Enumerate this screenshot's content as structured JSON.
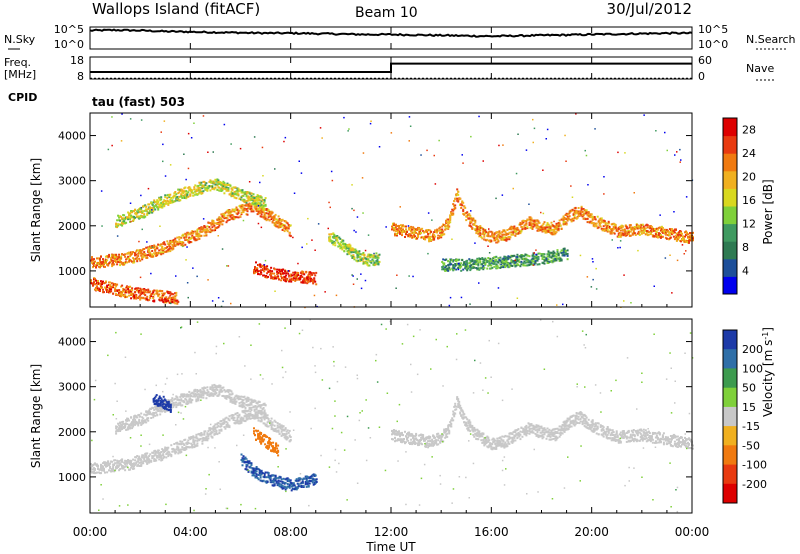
{
  "header": {
    "site": "Wallops Island (fitACF)",
    "beam": "Beam 10",
    "date": "30/Jul/2012"
  },
  "noise_panel": {
    "left_label": "N.Sky",
    "left_ticks": [
      "10^5",
      "10^0"
    ],
    "right_label": "N.Search",
    "right_ticks": [
      "10^5",
      "10^0"
    ]
  },
  "freq_panel": {
    "left_label_1": "Freq.",
    "left_label_2": "[MHz]",
    "left_ticks": [
      "18",
      "8"
    ],
    "right_label": "Nave",
    "right_ticks": [
      "60",
      "0"
    ]
  },
  "cpid": {
    "label": "CPID",
    "value": "tau (fast) 503"
  },
  "time_axis": {
    "label": "Time UT",
    "ticks": [
      "00:00",
      "04:00",
      "08:00",
      "12:00",
      "16:00",
      "20:00",
      "00:00"
    ]
  },
  "colors": {
    "power": [
      "#0000ee",
      "#1d4f9a",
      "#2e7a52",
      "#3f9a60",
      "#7fd03a",
      "#d8d820",
      "#f0b020",
      "#f07a10",
      "#e83a10",
      "#dd0000"
    ],
    "velocity": [
      "#1d3aa8",
      "#2f6fa8",
      "#3d9b4f",
      "#7fd03a",
      "#c8c8c8",
      "#f0b020",
      "#f07a10",
      "#e83a10",
      "#dd0000"
    ]
  },
  "chart_data": [
    {
      "type": "line",
      "title": "N.Sky / N.Search",
      "x": [
        0,
        1,
        2,
        3,
        4,
        5,
        6,
        7,
        8,
        9,
        10,
        11,
        12,
        13,
        14,
        15,
        16,
        17,
        18,
        19,
        20,
        21,
        22,
        23,
        24
      ],
      "series": [
        {
          "name": "N.Sky",
          "values": [
            4.2,
            4.3,
            4.2,
            4.0,
            3.9,
            3.8,
            3.7,
            3.6,
            3.6,
            3.5,
            3.4,
            3.3,
            3.3,
            3.2,
            3.1,
            3.0,
            2.9,
            3.0,
            3.1,
            3.2,
            3.3,
            3.4,
            3.5,
            3.6,
            3.6
          ]
        }
      ],
      "ylim": [
        0,
        5
      ],
      "ylabel": "N.Sky",
      "xlabel": ""
    },
    {
      "type": "line",
      "title": "Freq. [MHz] / Nave",
      "x": [
        0,
        12,
        12,
        24
      ],
      "series": [
        {
          "name": "Freq.",
          "values": [
            11.2,
            11.2,
            15.0,
            15.0
          ]
        },
        {
          "name": "Nave",
          "values": [
            2,
            2,
            2,
            2
          ]
        }
      ],
      "ylim": [
        8,
        18
      ],
      "ylabel": "Freq. [MHz]",
      "xlabel": ""
    },
    {
      "type": "heatmap",
      "title": "Power",
      "xlabel": "Time UT",
      "ylabel": "Slant Range [km]",
      "xlim": [
        0,
        24
      ],
      "ylim": [
        200,
        4500
      ],
      "yticks": [
        1000,
        2000,
        3000,
        4000
      ],
      "colorbar_label": "Power [dB]",
      "colorbar_ticks": [
        4,
        8,
        12,
        16,
        20,
        24,
        28
      ],
      "colorbar_range": [
        0,
        30
      ],
      "bands": [
        {
          "x": [
            0.0,
            1.5,
            3.0,
            4.5,
            5.5,
            6.5,
            7.5,
            8.0
          ],
          "y": [
            1200,
            1300,
            1550,
            1900,
            2250,
            2450,
            2100,
            1900
          ],
          "value": 22
        },
        {
          "x": [
            1.0,
            2.0,
            3.0,
            4.0,
            5.0,
            6.0,
            7.0
          ],
          "y": [
            2100,
            2300,
            2600,
            2800,
            2950,
            2700,
            2500
          ],
          "value": 16
        },
        {
          "x": [
            0.0,
            1.0,
            2.0,
            3.0,
            3.5
          ],
          "y": [
            750,
            600,
            500,
            450,
            400
          ],
          "value": 24
        },
        {
          "x": [
            6.5,
            7.0,
            7.5,
            8.0,
            8.5,
            9.0
          ],
          "y": [
            1100,
            1000,
            950,
            900,
            880,
            850
          ],
          "value": 26
        },
        {
          "x": [
            9.5,
            10.0,
            10.5,
            11.0,
            11.5
          ],
          "y": [
            1800,
            1600,
            1400,
            1250,
            1300
          ],
          "value": 14
        },
        {
          "x": [
            12.0,
            12.5,
            13.0,
            13.5,
            14.0,
            14.3,
            14.6,
            15.0,
            15.5,
            16.0,
            16.5,
            17.0,
            17.5,
            18.0,
            18.5,
            19.0,
            19.5,
            20.0,
            21.0,
            22.0,
            23.0,
            24.0
          ],
          "y": [
            1950,
            1900,
            1850,
            1800,
            1900,
            2100,
            2700,
            2200,
            1900,
            1750,
            1800,
            1950,
            2100,
            2000,
            1950,
            2200,
            2350,
            2150,
            1900,
            1950,
            1850,
            1750
          ],
          "value": 22
        },
        {
          "x": [
            14.0,
            15.0,
            16.0,
            17.0,
            18.0,
            19.0
          ],
          "y": [
            1150,
            1150,
            1200,
            1250,
            1300,
            1400
          ],
          "value": 10
        }
      ]
    },
    {
      "type": "heatmap",
      "title": "Velocity",
      "xlabel": "Time UT",
      "ylabel": "Slant Range [km]",
      "xlim": [
        0,
        24
      ],
      "ylim": [
        200,
        4500
      ],
      "yticks": [
        1000,
        2000,
        3000,
        4000
      ],
      "colorbar_label": "Velocity [m s^-1]",
      "colorbar_ticks": [
        "200",
        "100",
        "50",
        "15",
        "-15",
        "-50",
        "-100",
        "-200"
      ],
      "bands": [
        {
          "x": [
            0.0,
            1.5,
            3.0,
            4.5,
            5.5,
            6.5,
            7.5,
            8.0
          ],
          "y": [
            1200,
            1300,
            1550,
            1900,
            2250,
            2450,
            2100,
            1900
          ],
          "value": 0
        },
        {
          "x": [
            1.0,
            2.0,
            3.0,
            4.0,
            5.0,
            6.0,
            7.0
          ],
          "y": [
            2100,
            2300,
            2600,
            2800,
            2950,
            2700,
            2500
          ],
          "value": 5
        },
        {
          "x": [
            6.0,
            6.5,
            7.0,
            7.5,
            8.0,
            8.5,
            9.0
          ],
          "y": [
            1400,
            1150,
            1000,
            900,
            850,
            900,
            1000
          ],
          "value": 150
        },
        {
          "x": [
            2.5,
            3.0,
            3.2
          ],
          "y": [
            2750,
            2650,
            2550
          ],
          "value": 200
        },
        {
          "x": [
            6.5,
            7.0,
            7.5
          ],
          "y": [
            2000,
            1800,
            1600
          ],
          "value": -80
        },
        {
          "x": [
            12.0,
            12.5,
            13.0,
            13.5,
            14.0,
            14.3,
            14.6,
            15.0,
            15.5,
            16.0,
            16.5,
            17.0,
            17.5,
            18.0,
            18.5,
            19.0,
            19.5,
            20.0,
            21.0,
            22.0,
            23.0,
            24.0
          ],
          "y": [
            1950,
            1900,
            1850,
            1800,
            1900,
            2100,
            2700,
            2200,
            1900,
            1750,
            1800,
            1950,
            2100,
            2000,
            1950,
            2200,
            2350,
            2150,
            1900,
            1950,
            1850,
            1750
          ],
          "value": 0
        }
      ]
    }
  ]
}
